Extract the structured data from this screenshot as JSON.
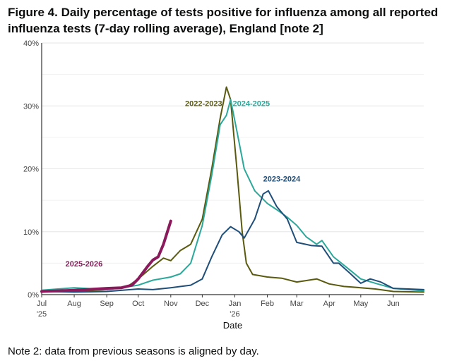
{
  "title": "Figure 4. Daily percentage of tests positive for influenza among all reported influenza tests (7-day rolling average), England [note 2]",
  "note": "Note 2: data from previous seasons is aligned by day.",
  "chart_data": {
    "type": "line",
    "title": "Figure 4. Daily percentage of tests positive for influenza among all reported influenza tests (7-day rolling average), England [note 2]",
    "xlabel": "Date",
    "ylabel": "",
    "xlim": [
      "2025-07-01",
      "2026-06-30"
    ],
    "ylim": [
      0,
      40
    ],
    "yticks": [
      0,
      10,
      20,
      30,
      40
    ],
    "ytick_labels": [
      "0%",
      "10%",
      "20%",
      "30%",
      "40%"
    ],
    "xticks": [
      {
        "date": "2025-07-01",
        "label": "Jul",
        "sub": "'25"
      },
      {
        "date": "2025-08-01",
        "label": "Aug"
      },
      {
        "date": "2025-09-01",
        "label": "Sep"
      },
      {
        "date": "2025-10-01",
        "label": "Oct"
      },
      {
        "date": "2025-11-01",
        "label": "Nov"
      },
      {
        "date": "2025-12-01",
        "label": "Dec"
      },
      {
        "date": "2026-01-01",
        "label": "Jan",
        "sub": "'26"
      },
      {
        "date": "2026-02-01",
        "label": "Feb"
      },
      {
        "date": "2026-03-01",
        "label": "Mar"
      },
      {
        "date": "2026-04-01",
        "label": "Apr"
      },
      {
        "date": "2026-05-01",
        "label": "May"
      },
      {
        "date": "2026-06-01",
        "label": "Jun"
      }
    ],
    "grid": true,
    "series": [
      {
        "name": "2022-2023",
        "color": "#5a5a0f",
        "label_at": [
          "2025-12-20",
          30
        ],
        "x": [
          "2025-07-01",
          "2025-08-01",
          "2025-09-01",
          "2025-09-20",
          "2025-10-01",
          "2025-10-15",
          "2025-10-25",
          "2025-11-01",
          "2025-11-10",
          "2025-11-20",
          "2025-12-01",
          "2025-12-10",
          "2025-12-18",
          "2025-12-24",
          "2025-12-28",
          "2026-01-03",
          "2026-01-08",
          "2026-01-12",
          "2026-01-18",
          "2026-02-01",
          "2026-02-15",
          "2026-03-01",
          "2026-03-20",
          "2026-04-01",
          "2026-04-15",
          "2026-05-01",
          "2026-05-15",
          "2026-06-01",
          "2026-06-30"
        ],
        "y": [
          0.5,
          0.5,
          0.8,
          1.2,
          2.5,
          4.5,
          5.8,
          5.4,
          7,
          8,
          12,
          20,
          28,
          33,
          31,
          20,
          10,
          5,
          3.2,
          2.8,
          2.6,
          2,
          2.5,
          1.7,
          1.3,
          1.1,
          0.9,
          0.5,
          0.4
        ]
      },
      {
        "name": "2024-2025",
        "color": "#2aa89a",
        "label_at": [
          "2025-12-30",
          30
        ],
        "x": [
          "2025-07-01",
          "2025-08-01",
          "2025-09-01",
          "2025-10-01",
          "2025-10-15",
          "2025-11-01",
          "2025-11-10",
          "2025-11-20",
          "2025-12-01",
          "2025-12-10",
          "2025-12-18",
          "2025-12-24",
          "2025-12-28",
          "2026-01-03",
          "2026-01-10",
          "2026-01-20",
          "2026-02-01",
          "2026-02-10",
          "2026-02-20",
          "2026-03-01",
          "2026-03-10",
          "2026-03-20",
          "2026-03-25",
          "2026-04-05",
          "2026-04-20",
          "2026-05-01",
          "2026-05-15",
          "2026-06-01",
          "2026-06-30"
        ],
        "y": [
          0.7,
          1.1,
          0.8,
          1.5,
          2.3,
          2.8,
          3.3,
          5,
          11,
          19,
          27,
          28.5,
          31,
          26,
          20,
          16.5,
          14.5,
          13.5,
          12.3,
          11,
          9.2,
          8,
          8.6,
          6,
          4,
          2.5,
          1.8,
          1,
          0.6
        ]
      },
      {
        "name": "2023-2024",
        "color": "#1f4e79",
        "label_at": [
          "2026-01-28",
          18
        ],
        "x": [
          "2025-07-01",
          "2025-08-01",
          "2025-09-01",
          "2025-10-01",
          "2025-10-15",
          "2025-11-01",
          "2025-11-20",
          "2025-12-01",
          "2025-12-10",
          "2025-12-20",
          "2025-12-28",
          "2026-01-05",
          "2026-01-10",
          "2026-01-20",
          "2026-01-28",
          "2026-02-02",
          "2026-02-10",
          "2026-02-20",
          "2026-03-01",
          "2026-03-15",
          "2026-03-25",
          "2026-04-05",
          "2026-04-10",
          "2026-04-20",
          "2026-05-01",
          "2026-05-10",
          "2026-05-20",
          "2026-06-01",
          "2026-06-30"
        ],
        "y": [
          0.5,
          0.4,
          0.5,
          0.9,
          0.8,
          1.1,
          1.5,
          2.5,
          6,
          9.5,
          10.8,
          10,
          9,
          12,
          16,
          16.5,
          14,
          12,
          8.3,
          7.8,
          7.7,
          5,
          5,
          3.5,
          1.8,
          2.5,
          2,
          1,
          0.8
        ]
      },
      {
        "name": "2025-2026",
        "color": "#8a1a5b",
        "label_at": [
          "2025-08-28",
          4.5
        ],
        "x": [
          "2025-07-01",
          "2025-08-01",
          "2025-09-01",
          "2025-09-15",
          "2025-09-25",
          "2025-10-01",
          "2025-10-10",
          "2025-10-15",
          "2025-10-20",
          "2025-10-25",
          "2025-11-01"
        ],
        "y": [
          0.5,
          0.7,
          1,
          1.1,
          1.5,
          2.5,
          4.5,
          5.5,
          6,
          8,
          11.7
        ]
      }
    ]
  }
}
